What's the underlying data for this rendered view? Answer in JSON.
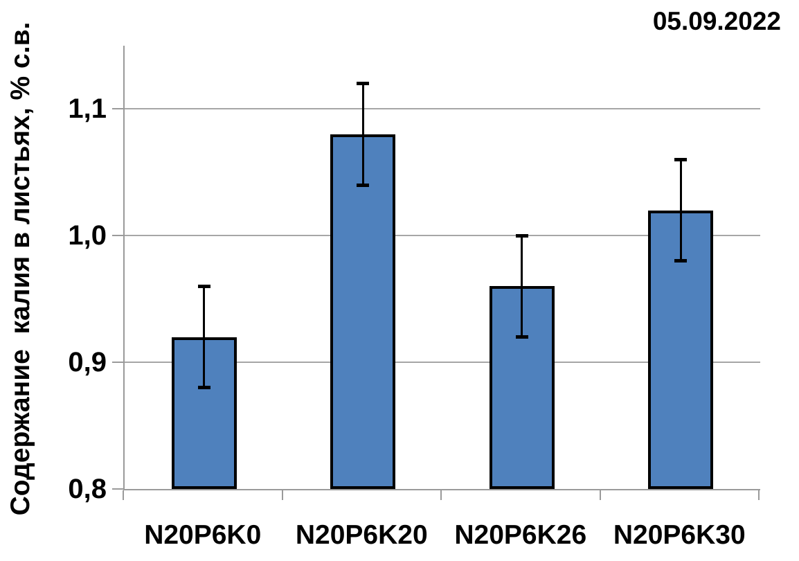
{
  "chart_data": {
    "type": "bar",
    "date_label": "05.09.2022",
    "title": "",
    "xlabel": "",
    "ylabel": "Содержание  калия в листьях, % с.в.",
    "categories": [
      "N20P6K0",
      "N20P6K20",
      "N20P6K26",
      "N20P6K30"
    ],
    "values": [
      0.92,
      1.08,
      0.96,
      1.02
    ],
    "error_bars": [
      0.04,
      0.04,
      0.04,
      0.04
    ],
    "ylim": [
      0.8,
      1.15
    ],
    "ytick_values": [
      1.1,
      1.0,
      0.9,
      0.8
    ],
    "ytick_labels": [
      "1,1",
      "1,0",
      "0,9",
      "0,8"
    ],
    "gridline_values": [
      1.1,
      1.0,
      0.9
    ],
    "grid": true,
    "legend": "none",
    "colors": {
      "bar_fill": "#4f81bd",
      "bar_border": "#000000",
      "error_bar": "#000000",
      "gridline": "#a6a6a6",
      "axis_line": "#9a9a9a",
      "text": "#000000",
      "background": "#ffffff"
    }
  }
}
